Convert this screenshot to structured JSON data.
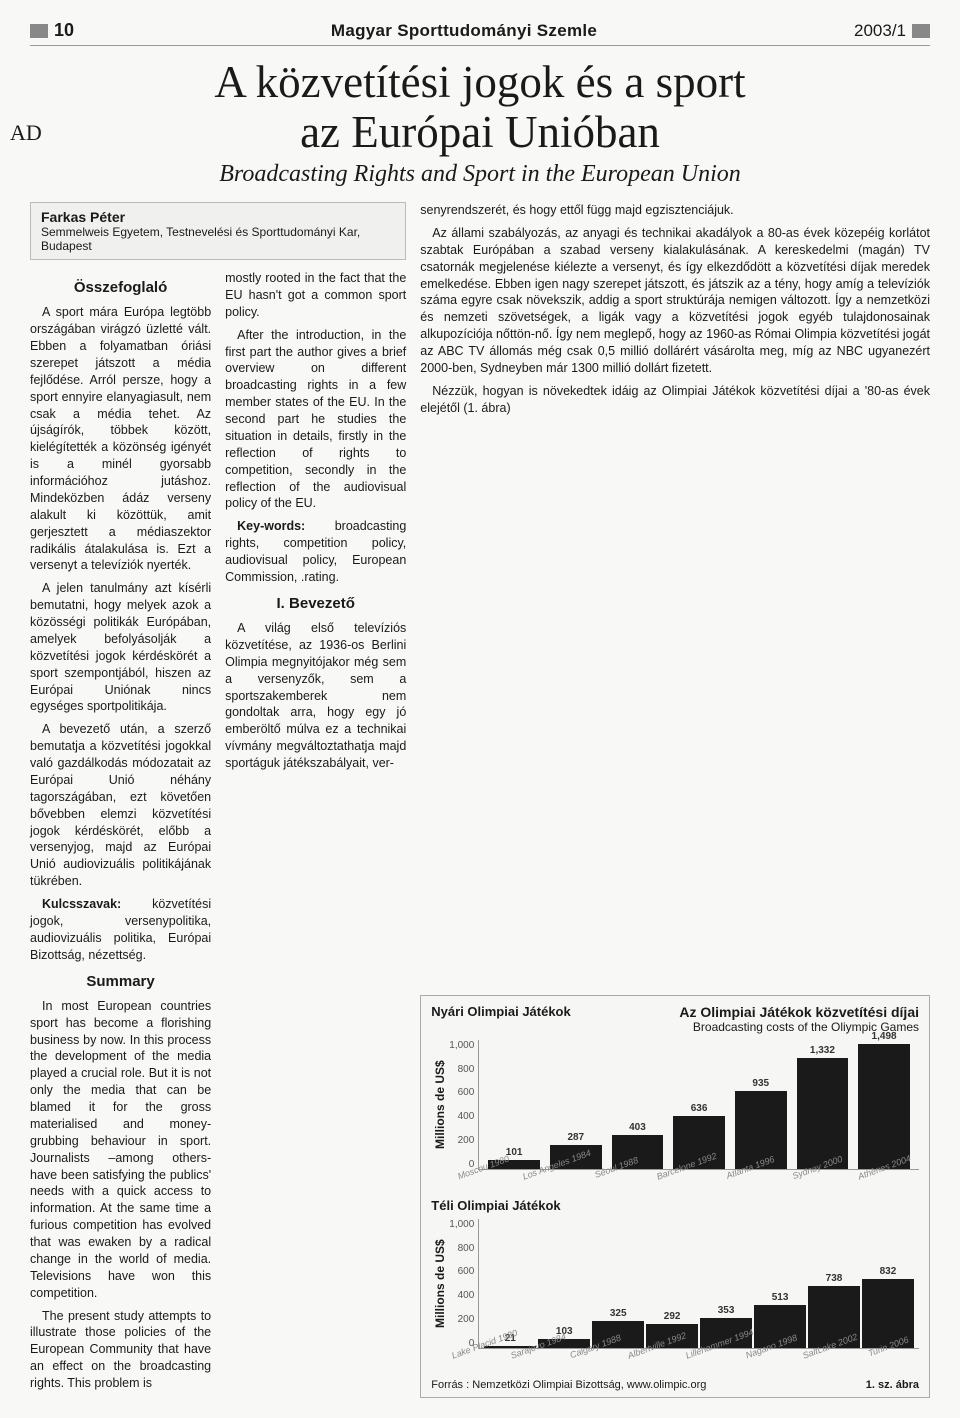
{
  "header": {
    "page_number": "10",
    "journal": "Magyar Sporttudományi Szemle",
    "issue": "2003/1"
  },
  "margin_note": "AD",
  "title": {
    "line1": "A közvetítési jogok és a sport",
    "line2": "az Európai Unióban"
  },
  "subtitle": "Broadcasting Rights and Sport in the European Union",
  "author": {
    "name": "Farkas Péter",
    "affiliation": "Semmelweis Egyetem, Testnevelési és Sporttudományi Kar, Budapest"
  },
  "sections": {
    "osszefoglalo_heading": "Összefoglaló",
    "osszefoglalo_p1": "A sport mára Európa legtöbb országában virágzó üzletté vált. Ebben a folyamatban óriási szerepet játszott a média fejlődése. Arról persze, hogy a sport ennyire elanyagiasult, nem csak a média tehet. Az újságírók, többek között, kielégítették a közönség igényét is a minél gyorsabb információhoz jutáshoz. Mindeközben ádáz verseny alakult ki közöttük, amit gerjesztett a médiaszektor radikális átalakulása is. Ezt a versenyt a televíziók nyerték.",
    "osszefoglalo_p2": "A jelen tanulmány azt kísérli bemutatni, hogy melyek azok a közösségi politikák Európában, amelyek befolyásolják a közvetítési jogok kérdéskörét a sport szempontjából, hiszen az Európai Uniónak nincs egységes sportpolitikája.",
    "osszefoglalo_p3": "A bevezető után, a szerző bemutatja a közvetítési jogokkal való gazdálkodás módozatait az Európai Unió néhány tagországában, ezt követően bővebben elemzi közvetítési jogok kérdéskörét, előbb a versenyjog, majd az Európai Unió audiovizuális politikájának tükrében.",
    "keywords_hu_label": "Kulcsszavak:",
    "keywords_hu": "közvetítési jogok, versenypolitika, audiovizuális politika, Európai Bizottság, nézettség.",
    "summary_heading": "Summary",
    "summary_p1": "In most European countries sport has become a florishing business by now. In this process the development of the media played a crucial role. But it is not only the media that can be blamed it for the gross materialised and money-grubbing behaviour in sport. Journalists –among others- have been satisfying the publics' needs with a quick access to information. At the same time a furious competition has evolved that was ewaken by a radical change in the world of media. Televisions have won this competition.",
    "summary_p2": "The present study attempts to illustrate those policies of the European Community that have an effect on the broadcasting rights. This problem is",
    "col2_p1": "mostly rooted in the fact that the EU hasn't got a common sport policy.",
    "col2_p2": "After the introduction, in the first part the author gives a brief overview on different broadcasting rights in a few member states of the EU. In the second part he studies the situation in details, firstly in the reflection of rights to competition, secondly in the reflection of the audiovisual policy of the EU.",
    "keywords_en_label": "Key-words:",
    "keywords_en": "broadcasting rights, competition policy, audiovisual policy, European Commission, .rating.",
    "bevezeto_heading": "I. Bevezető",
    "bevezeto_p1": "A világ első televíziós közvetítése, az 1936-os Berlini Olimpia megnyitójakor még sem a versenyzők, sem a sportszakemberek nem gondoltak arra, hogy egy jó emberöltő múlva ez a technikai vívmány megváltoztathatja majd sportáguk játékszabályait, ver-",
    "col3_p1": "senyrendszerét, és hogy ettől függ majd egzisztenciájuk.",
    "col3_p2": "Az állami szabályozás, az anyagi és technikai akadályok a 80-as évek közepéig korlátot szabtak Európában a szabad verseny kialakulásának. A kereskedelmi (magán) TV csatornák megjelenése kiélezte a versenyt, és így elkezdődött a közvetítési díjak meredek emelkedése. Ebben igen nagy szerepet játszott, és játszik az a tény, hogy amíg a televíziók száma egyre csak növekszik, addig a sport struktúrája nemigen változott. Így a nemzetközi és nemzeti szövetségek, a ligák vagy a közvetítési jogok egyéb tulajdonosainak alkupozíciója nőttön-nő. Így nem meglepő, hogy az 1960-as Római Olimpia közvetítési jogát az ABC TV állomás még csak 0,5 millió dollárért vásárolta meg, míg az NBC ugyanezért 2000-ben, Sydneyben már 1300 millió dollárt fizetett.",
    "col3_p3": "Nézzük, hogyan is növekedtek idáig az Olimpiai Játékok közvetítési díjai a '80-as évek elejétől (1. ábra)"
  },
  "chart": {
    "summer_title": "Nyári Olimpiai Játékok",
    "box_title_line1": "Az Olimpiai Játékok közvetítési díjai",
    "box_title_line2": "Broadcasting costs of the Oliympic Games",
    "winter_title": "Téli Olimpiai Játékok",
    "ylabel": "Millions de US$",
    "ymax": 1000,
    "yticks": [
      "0",
      "200",
      "400",
      "600",
      "800",
      "1,000"
    ],
    "summer": {
      "labels": [
        "Moscou 1980",
        "Los Angeles 1984",
        "Séoul 1988",
        "Barcelone 1992",
        "Atlanta 1996",
        "Sydney 2000",
        "Athènes 2004"
      ],
      "values": [
        101,
        287,
        403,
        636,
        935,
        1332,
        1498
      ],
      "display": [
        "101",
        "287",
        "403",
        "636",
        "935",
        "1,332",
        "1,498"
      ]
    },
    "winter": {
      "labels": [
        "Lake Placid 1980",
        "Sarajevo 1984",
        "Calgary 1988",
        "Albertville 1992",
        "Lillehammer 1994",
        "Nagano 1998",
        "SaltLake 2002",
        "Turin 2006"
      ],
      "values": [
        21,
        103,
        325,
        292,
        353,
        513,
        738,
        832
      ],
      "display": [
        "21",
        "103",
        "325",
        "292",
        "353",
        "513",
        "738",
        "832"
      ]
    },
    "source_label": "Forrás :",
    "source": "Nemzetközi Olimpiai Bizottság, www.olimpic.org",
    "figure_label": "1. sz. ábra",
    "colors": {
      "bar": "#1a1a1a",
      "axis": "#999999",
      "text": "#333333",
      "xlabel": "#aaaaaa"
    }
  }
}
